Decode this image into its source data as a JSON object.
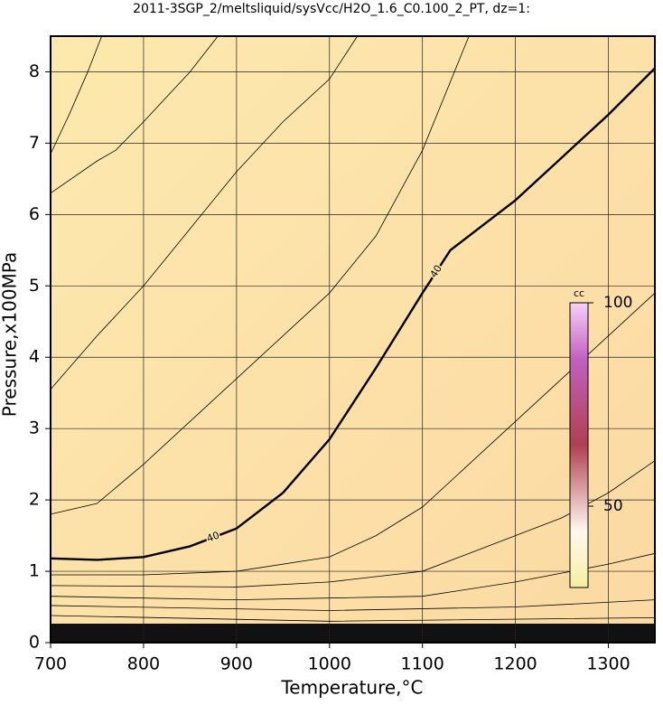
{
  "chart_data": {
    "type": "contour",
    "title": "2011-3SGP_2/meltsliquid/sysVcc/H2O_1.6_C0.100_2_PT, dz=1:",
    "x_label": "Temperature,°C",
    "y_label": "Pressure,x100MPa",
    "xlim": [
      700,
      1350
    ],
    "ylim": [
      0,
      8.5
    ],
    "xticks": [
      700,
      800,
      900,
      1000,
      1100,
      1200,
      1300
    ],
    "yticks": [
      0,
      1,
      2,
      3,
      4,
      5,
      6,
      7,
      8
    ],
    "grid": true,
    "contours": [
      {
        "level": 40,
        "x": [
          700,
          750,
          800,
          850,
          900,
          950,
          1000,
          1050,
          1100,
          1130,
          1200,
          1250,
          1300,
          1350
        ],
        "y": [
          1.18,
          1.16,
          1.2,
          1.35,
          1.6,
          2.1,
          2.85,
          3.85,
          4.9,
          5.5,
          6.2,
          6.8,
          7.4,
          8.05
        ]
      },
      {
        "x": [
          700,
          720,
          740,
          755
        ],
        "y": [
          6.85,
          7.4,
          8.0,
          8.5
        ]
      },
      {
        "x": [
          700,
          750,
          770,
          800,
          850,
          880
        ],
        "y": [
          6.3,
          6.75,
          6.9,
          7.3,
          8.0,
          8.5
        ]
      },
      {
        "x": [
          700,
          750,
          800,
          850,
          900,
          950,
          1000,
          1030
        ],
        "y": [
          3.55,
          4.3,
          5.0,
          5.8,
          6.6,
          7.3,
          7.9,
          8.5
        ]
      },
      {
        "x": [
          700,
          750,
          800,
          850,
          900,
          950,
          1000,
          1050,
          1100,
          1150
        ],
        "y": [
          1.8,
          1.95,
          2.5,
          3.1,
          3.7,
          4.3,
          4.9,
          5.7,
          6.9,
          8.5
        ]
      },
      {
        "x": [
          700,
          800,
          900,
          1000,
          1050,
          1100,
          1150,
          1200,
          1250,
          1300,
          1350
        ],
        "y": [
          0.95,
          0.95,
          1.0,
          1.2,
          1.5,
          1.9,
          2.5,
          3.1,
          3.7,
          4.3,
          4.9
        ]
      },
      {
        "x": [
          700,
          900,
          1000,
          1100,
          1150,
          1200,
          1250,
          1300,
          1350
        ],
        "y": [
          0.8,
          0.78,
          0.85,
          1.0,
          1.25,
          1.5,
          1.75,
          2.1,
          2.55
        ]
      },
      {
        "x": [
          700,
          900,
          1100,
          1200,
          1300,
          1350
        ],
        "y": [
          0.65,
          0.6,
          0.65,
          0.85,
          1.1,
          1.25
        ]
      },
      {
        "x": [
          700,
          1000,
          1200,
          1350
        ],
        "y": [
          0.52,
          0.45,
          0.5,
          0.6
        ]
      },
      {
        "x": [
          700,
          1000,
          1350
        ],
        "y": [
          0.38,
          0.3,
          0.35
        ]
      }
    ],
    "colorbar": {
      "label": "cc",
      "clim": [
        30,
        100
      ],
      "ticks": [
        50,
        100
      ]
    }
  }
}
